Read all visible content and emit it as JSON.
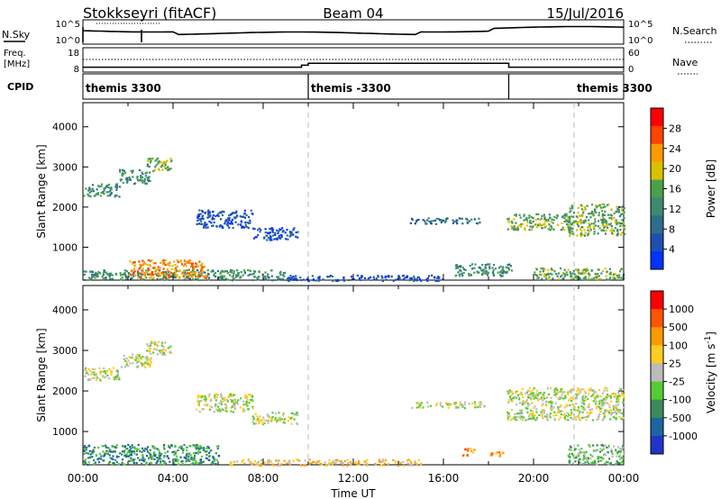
{
  "header": {
    "station": "Stokkseyri (fitACF)",
    "beam": "Beam 04",
    "date": "15/Jul/2016"
  },
  "top_panel": {
    "left_label": "N.Sky",
    "left_ticks": [
      "10^5",
      "10^0"
    ],
    "right_ticks": [
      "10^5",
      "10^0"
    ],
    "right_label": "N.Search",
    "freq_label_line1": "Freq.",
    "freq_label_line2": "[MHz]",
    "freq_ticks": [
      "18",
      "8"
    ],
    "nave_ticks": [
      "60",
      "0"
    ],
    "nave_label": "Nave",
    "cpid_label": "CPID",
    "cpid_segments": [
      {
        "label": "themis 3300",
        "start_hour": 0,
        "end_hour": 10
      },
      {
        "label": "themis -3300",
        "start_hour": 10,
        "end_hour": 18.9
      },
      {
        "label": "themis 3300",
        "start_hour": 18.9,
        "end_hour": 24
      }
    ],
    "freq_steps": [
      {
        "start_hour": 0,
        "end_hour": 9.7,
        "freq_mhz": 10
      },
      {
        "start_hour": 9.7,
        "end_hour": 10,
        "freq_mhz": 11
      },
      {
        "start_hour": 10,
        "end_hour": 18.9,
        "freq_mhz": 12
      },
      {
        "start_hour": 18.9,
        "end_hour": 24,
        "freq_mhz": 10
      }
    ]
  },
  "colors": {
    "power_scale": [
      "#0033ff",
      "#1f4fb0",
      "#2e6d8e",
      "#3d8a70",
      "#4aa04a",
      "#d9c000",
      "#ff9900",
      "#ff4400",
      "#ff0000"
    ],
    "velocity_scale": [
      "#2233cc",
      "#1a66a0",
      "#3d8a5a",
      "#55cc33",
      "#bbbbbb",
      "#ffcc22",
      "#ff9900",
      "#ff5500",
      "#ff0000"
    ],
    "gray": "#bbbbbb"
  },
  "power_colorbar": {
    "ticks": [
      "28",
      "24",
      "20",
      "16",
      "12",
      "8",
      "4"
    ],
    "label": "Power [dB]"
  },
  "velocity_colorbar": {
    "ticks": [
      "1000",
      "500",
      "100",
      "25",
      "-25",
      "-100",
      "-500",
      "-1000"
    ],
    "label": "Velocity [m s^-1]"
  },
  "chart_data": [
    {
      "type": "heatmap",
      "title": "Power",
      "ylabel": "Slant Range [km]",
      "xlabel": "Time UT",
      "x_ticks": [
        "00:00",
        "04:00",
        "08:00",
        "12:00",
        "16:00",
        "20:00",
        "00:00"
      ],
      "xlim_hours": [
        0,
        24
      ],
      "y_ticks": [
        1000,
        2000,
        3000,
        4000
      ],
      "ylim": [
        180,
        4600
      ],
      "value_units": "dB",
      "echo_regions": [
        {
          "t0": 0.0,
          "t1": 1.6,
          "r0": 2280,
          "r1": 2600,
          "level": 3
        },
        {
          "t0": 1.6,
          "t1": 3.0,
          "r0": 2600,
          "r1": 2950,
          "level": 3
        },
        {
          "t0": 2.8,
          "t1": 3.9,
          "r0": 2900,
          "r1": 3250,
          "level": 4
        },
        {
          "t0": 0.0,
          "t1": 9.0,
          "r0": 200,
          "r1": 450,
          "level": 3
        },
        {
          "t0": 2.0,
          "t1": 5.5,
          "r0": 250,
          "r1": 700,
          "level": 6
        },
        {
          "t0": 5.0,
          "t1": 7.5,
          "r0": 1500,
          "r1": 1950,
          "level": 1
        },
        {
          "t0": 7.5,
          "t1": 9.5,
          "r0": 1200,
          "r1": 1500,
          "level": 1
        },
        {
          "t0": 9.0,
          "t1": 16.0,
          "r0": 180,
          "r1": 320,
          "level": 1
        },
        {
          "t0": 14.5,
          "t1": 17.8,
          "r0": 1600,
          "r1": 1750,
          "level": 2
        },
        {
          "t0": 16.5,
          "t1": 19.0,
          "r0": 300,
          "r1": 600,
          "level": 3
        },
        {
          "t0": 18.8,
          "t1": 21.6,
          "r0": 1450,
          "r1": 1850,
          "level": 4
        },
        {
          "t0": 21.5,
          "t1": 24.0,
          "r0": 1300,
          "r1": 2100,
          "level": 4
        },
        {
          "t0": 20.0,
          "t1": 24.0,
          "r0": 200,
          "r1": 500,
          "level": 4
        }
      ]
    },
    {
      "type": "heatmap",
      "title": "Velocity",
      "ylabel": "Slant Range [km]",
      "xlabel": "Time UT",
      "x_ticks": [
        "00:00",
        "04:00",
        "08:00",
        "12:00",
        "16:00",
        "20:00",
        "00:00"
      ],
      "xlim_hours": [
        0,
        24
      ],
      "y_ticks": [
        1000,
        2000,
        3000,
        4000
      ],
      "ylim": [
        180,
        4600
      ],
      "value_units": "m s^-1",
      "echo_regions": [
        {
          "t0": 0.0,
          "t1": 1.6,
          "r0": 2280,
          "r1": 2600,
          "level": 4
        },
        {
          "t0": 1.6,
          "t1": 3.0,
          "r0": 2600,
          "r1": 2950,
          "level": 4
        },
        {
          "t0": 2.8,
          "t1": 3.9,
          "r0": 2900,
          "r1": 3250,
          "level": 4
        },
        {
          "t0": 0.0,
          "t1": 6.0,
          "r0": 200,
          "r1": 700,
          "level": 2
        },
        {
          "t0": 5.0,
          "t1": 7.5,
          "r0": 1500,
          "r1": 1950,
          "level": 4
        },
        {
          "t0": 7.5,
          "t1": 9.5,
          "r0": 1200,
          "r1": 1500,
          "level": 4
        },
        {
          "t0": 6.5,
          "t1": 15.0,
          "r0": 180,
          "r1": 330,
          "level": 5
        },
        {
          "t0": 14.5,
          "t1": 17.8,
          "r0": 1600,
          "r1": 1750,
          "level": 4
        },
        {
          "t0": 16.8,
          "t1": 17.4,
          "r0": 420,
          "r1": 600,
          "level": 6
        },
        {
          "t0": 18.0,
          "t1": 18.8,
          "r0": 380,
          "r1": 520,
          "level": 6
        },
        {
          "t0": 18.8,
          "t1": 24.0,
          "r0": 1300,
          "r1": 2100,
          "level": 4
        },
        {
          "t0": 21.5,
          "t1": 24.0,
          "r0": 200,
          "r1": 700,
          "level": 3
        }
      ]
    }
  ]
}
